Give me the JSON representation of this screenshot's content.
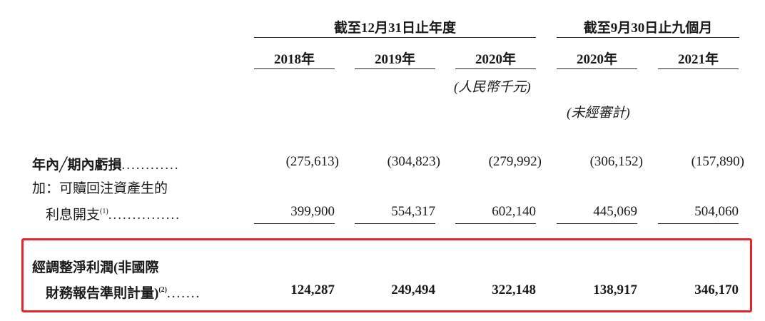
{
  "header": {
    "group1": "截至12月31日止年度",
    "group2": "截至9月30日止九個月",
    "years": [
      "2018年",
      "2019年",
      "2020年",
      "2020年",
      "2021年"
    ],
    "currency_note": "(人民幣千元)",
    "unaudited_note": "(未經審計)"
  },
  "rows": {
    "loss": {
      "label": "年內╱期內虧損",
      "dots": "............",
      "values": [
        "(275,613)",
        "(304,823)",
        "(279,992)",
        "(306,152)",
        "(157,890)"
      ]
    },
    "add": {
      "label_line1": "加：可贖回注資產生的",
      "label_line2": "利息開支",
      "sup": "(1)",
      "dots": "...............",
      "values": [
        "399,900",
        "554,317",
        "602,140",
        "445,069",
        "504,060"
      ]
    },
    "adjusted": {
      "label_line1": "經調整淨利潤(非國際",
      "label_line2": "財務報告準則計量)",
      "sup": "(2)",
      "dots": ".......",
      "values": [
        "124,287",
        "249,494",
        "322,148",
        "138,917",
        "346,170"
      ]
    }
  },
  "colors": {
    "highlight_border": "#e4262a"
  }
}
